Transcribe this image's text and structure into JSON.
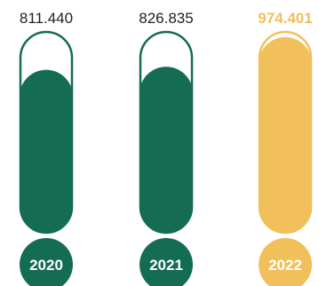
{
  "chart_data": {
    "type": "bar",
    "categories": [
      "2020",
      "2021",
      "2022"
    ],
    "values": [
      811440,
      826835,
      974401
    ],
    "value_labels": [
      "811.440",
      "826.835",
      "974.401"
    ],
    "highlight_index": 2,
    "ylim": [
      0,
      1000000
    ],
    "grid": false,
    "legend": "none",
    "title": "",
    "xlabel": "",
    "ylabel": ""
  },
  "colors": {
    "primary": "#146c52",
    "highlight": "#f2c05a",
    "value_text": "#222222"
  }
}
